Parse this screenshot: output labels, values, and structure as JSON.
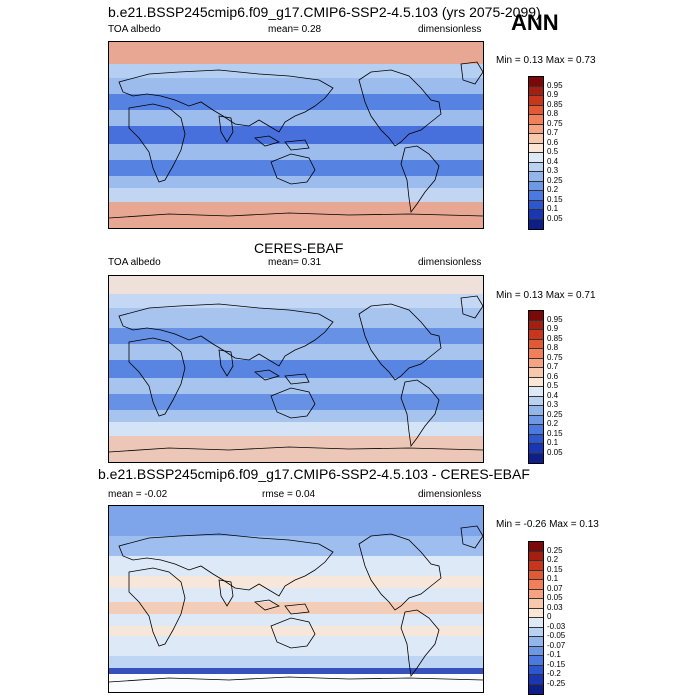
{
  "header": {
    "case_title": "b.e21.BSSP245cmip6.f09_g17.CMIP6-SSP2-4.5.103 (yrs 2075-2099)",
    "season": "ANN"
  },
  "panels": [
    {
      "id": "model",
      "left_label": "TOA albedo",
      "mid_label": "mean=  0.28",
      "right_label": "dimensionless",
      "range_label": "Min =  0.13 Max =  0.73",
      "colorbar_labels": [
        "0.95",
        "0.9",
        "0.85",
        "0.8",
        "0.75",
        "0.7",
        "0.6",
        "0.5",
        "0.4",
        "0.3",
        "0.25",
        "0.2",
        "0.15",
        "0.1",
        "0.05"
      ],
      "colorbar_colors": [
        "#7a0a0a",
        "#a41e12",
        "#c8361e",
        "#e05a36",
        "#f07f5a",
        "#f5a383",
        "#f8c8ad",
        "#fbe6d6",
        "#dde9f7",
        "#b9d2f2",
        "#92b6ec",
        "#6d98e6",
        "#4a79df",
        "#2c57cf",
        "#1a36b0",
        "#0d1f86"
      ]
    },
    {
      "id": "obs",
      "center_title": "CERES-EBAF",
      "left_label": "TOA albedo",
      "mid_label": "mean=  0.31",
      "right_label": "dimensionless",
      "range_label": "Min =  0.13 Max =  0.71",
      "colorbar_labels": [
        "0.95",
        "0.9",
        "0.85",
        "0.8",
        "0.75",
        "0.7",
        "0.6",
        "0.5",
        "0.4",
        "0.3",
        "0.25",
        "0.2",
        "0.15",
        "0.1",
        "0.05"
      ],
      "colorbar_colors": [
        "#7a0a0a",
        "#a41e12",
        "#c8361e",
        "#e05a36",
        "#f07f5a",
        "#f5a383",
        "#f8c8ad",
        "#fbe6d6",
        "#dde9f7",
        "#b9d2f2",
        "#92b6ec",
        "#6d98e6",
        "#4a79df",
        "#2c57cf",
        "#1a36b0",
        "#0d1f86"
      ]
    },
    {
      "id": "diff",
      "top_title": "b.e21.BSSP245cmip6.f09_g17.CMIP6-SSP2-4.5.103 - CERES-EBAF",
      "left_label": "mean =  -0.02",
      "mid_label": "rmse =  0.04",
      "right_label": "dimensionless",
      "range_label": "Min =  -0.26 Max =  0.13",
      "colorbar_labels": [
        "0.25",
        "0.2",
        "0.15",
        "0.1",
        "0.07",
        "0.05",
        "0.03",
        "0",
        "-0.03",
        "-0.05",
        "-0.07",
        "-0.1",
        "-0.15",
        "-0.2",
        "-0.25"
      ],
      "colorbar_colors": [
        "#7a0a0a",
        "#a41e12",
        "#c8361e",
        "#e05a36",
        "#f07f5a",
        "#f5a383",
        "#f8c8ad",
        "#fbe6d6",
        "#dde9f7",
        "#b9d2f2",
        "#92b6ec",
        "#6d98e6",
        "#4a79df",
        "#2c57cf",
        "#1a36b0",
        "#0d1f86"
      ]
    }
  ]
}
